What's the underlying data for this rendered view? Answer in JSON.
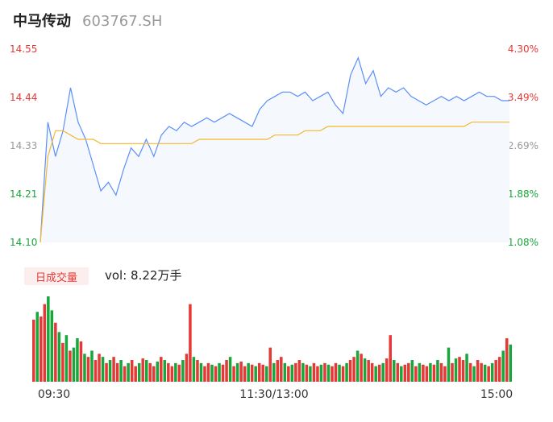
{
  "header": {
    "name": "中马传动",
    "code": "603767.SH"
  },
  "volume": {
    "badge_label": "日成交量",
    "label": "vol: 8.22万手"
  },
  "colors": {
    "price_line": "#5b8ff9",
    "price_fill": "#f5f8fd",
    "avg_line": "#f5b82e",
    "up": "#e53935",
    "down": "#19a63c",
    "neutral": "#999999"
  },
  "chart_data": [
    {
      "type": "line",
      "title": "",
      "series": [
        {
          "name": "",
          "kind": "price",
          "values": [
            14.1,
            14.38,
            14.3,
            14.36,
            14.46,
            14.38,
            14.34,
            14.28,
            14.22,
            14.24,
            14.21,
            14.27,
            14.32,
            14.3,
            14.34,
            14.3,
            14.35,
            14.37,
            14.36,
            14.38,
            14.37,
            14.38,
            14.39,
            14.38,
            14.39,
            14.4,
            14.39,
            14.38,
            14.37,
            14.41,
            14.43,
            14.44,
            14.45,
            14.45,
            14.44,
            14.45,
            14.43,
            14.44,
            14.45,
            14.42,
            14.4,
            14.49,
            14.53,
            14.47,
            14.5,
            14.44,
            14.46,
            14.45,
            14.46,
            14.44,
            14.43,
            14.42,
            14.43,
            14.44,
            14.43,
            14.44,
            14.43,
            14.44,
            14.45,
            14.44,
            14.44,
            14.43,
            14.43
          ]
        },
        {
          "name": "",
          "kind": "average",
          "values": [
            14.1,
            14.3,
            14.36,
            14.36,
            14.35,
            14.34,
            14.34,
            14.34,
            14.33,
            14.33,
            14.33,
            14.33,
            14.33,
            14.33,
            14.33,
            14.33,
            14.33,
            14.33,
            14.33,
            14.33,
            14.33,
            14.34,
            14.34,
            14.34,
            14.34,
            14.34,
            14.34,
            14.34,
            14.34,
            14.34,
            14.34,
            14.35,
            14.35,
            14.35,
            14.35,
            14.36,
            14.36,
            14.36,
            14.37,
            14.37,
            14.37,
            14.37,
            14.37,
            14.37,
            14.37,
            14.37,
            14.37,
            14.37,
            14.37,
            14.37,
            14.37,
            14.37,
            14.37,
            14.37,
            14.37,
            14.37,
            14.37,
            14.38,
            14.38,
            14.38,
            14.38,
            14.38,
            14.38
          ]
        }
      ],
      "ylim": [
        14.1,
        14.55
      ],
      "y_ticks_left": [
        "14.55",
        "14.44",
        "14.33",
        "14.21",
        "14.10"
      ],
      "y_ticks_right": [
        "4.30%",
        "3.49%",
        "2.69%",
        "1.88%",
        "1.08%"
      ]
    },
    {
      "type": "bar",
      "title": "",
      "x_ticks": [
        "09:30",
        "11:30/13:00",
        "15:00"
      ],
      "values": [
        40,
        45,
        42,
        50,
        55,
        46,
        38,
        32,
        25,
        30,
        20,
        22,
        28,
        26,
        18,
        16,
        20,
        14,
        18,
        16,
        12,
        14,
        16,
        12,
        14,
        10,
        12,
        14,
        10,
        12,
        15,
        14,
        12,
        10,
        13,
        16,
        14,
        12,
        10,
        12,
        11,
        14,
        18,
        50,
        16,
        14,
        12,
        10,
        12,
        11,
        10,
        12,
        11,
        14,
        16,
        10,
        12,
        13,
        10,
        12,
        11,
        10,
        12,
        11,
        10,
        22,
        12,
        14,
        16,
        12,
        10,
        11,
        12,
        14,
        12,
        11,
        10,
        12,
        10,
        11,
        12,
        11,
        10,
        12,
        11,
        10,
        12,
        14,
        16,
        20,
        18,
        15,
        14,
        12,
        10,
        11,
        12,
        15,
        30,
        14,
        12,
        10,
        11,
        12,
        14,
        10,
        12,
        11,
        10,
        12,
        11,
        14,
        12,
        10,
        22,
        12,
        15,
        16,
        14,
        18,
        12,
        10,
        14,
        12,
        11,
        10,
        12,
        14,
        16,
        20,
        28,
        24
      ],
      "directions": [
        "u",
        "d",
        "u",
        "u",
        "d",
        "d",
        "u",
        "d",
        "u",
        "d",
        "u",
        "d",
        "d",
        "u",
        "d",
        "u",
        "d",
        "u",
        "u",
        "d",
        "u",
        "d",
        "u",
        "u",
        "d",
        "u",
        "d",
        "u",
        "u",
        "d",
        "u",
        "d",
        "u",
        "u",
        "d",
        "u",
        "d",
        "u",
        "u",
        "d",
        "u",
        "d",
        "u",
        "u",
        "d",
        "u",
        "d",
        "u",
        "u",
        "d",
        "u",
        "d",
        "u",
        "u",
        "d",
        "u",
        "d",
        "u",
        "u",
        "d",
        "u",
        "d",
        "u",
        "u",
        "d",
        "u",
        "d",
        "u",
        "u",
        "d",
        "u",
        "d",
        "u",
        "u",
        "d",
        "u",
        "d",
        "u",
        "u",
        "d",
        "u",
        "d",
        "u",
        "u",
        "d",
        "u",
        "d",
        "u",
        "u",
        "d",
        "u",
        "d",
        "u",
        "u",
        "d",
        "u",
        "d",
        "u",
        "u",
        "d",
        "u",
        "d",
        "u",
        "u",
        "d",
        "u",
        "d",
        "u",
        "u",
        "d",
        "u",
        "d",
        "u",
        "u",
        "d",
        "u",
        "d",
        "u",
        "u",
        "d",
        "u",
        "d",
        "u",
        "u",
        "d",
        "u",
        "d",
        "u",
        "u",
        "d",
        "u",
        "d"
      ]
    }
  ]
}
